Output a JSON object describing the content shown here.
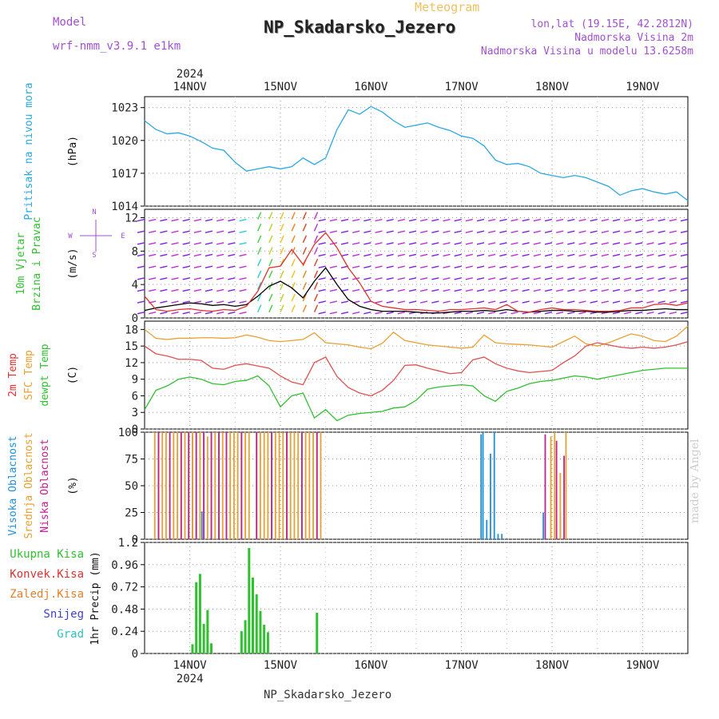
{
  "header": {
    "title": "NP_Skadarsko_Jezero",
    "meteogram": "Meteogram",
    "model_label": "Model",
    "model_name": "wrf-nmm_v3.9.1 e1km",
    "lonlat": "lon,lat (19.15E, 42.2812N)",
    "elevation": "Nadmorska Visina 2m",
    "model_elevation": "Nadmorska Visina u modelu 13.6258m"
  },
  "footer": "NP_Skadarsko_Jezero",
  "watermark": "made by Angel",
  "x_axis": {
    "year": "2024",
    "days": [
      "14NOV",
      "15NOV",
      "16NOV",
      "17NOV",
      "18NOV",
      "19NOV"
    ]
  },
  "chart_data": [
    {
      "type": "line",
      "panel": "pressure",
      "ylabel_lines": [
        "Pritisak na nivou mora"
      ],
      "unit": "(hPa)",
      "ylim": [
        1014,
        1024
      ],
      "yticks": [
        1014,
        1017,
        1020,
        1023
      ],
      "grid": true,
      "color": "#2aa8e0",
      "x_hours": [
        0,
        3,
        6,
        9,
        12,
        15,
        18,
        21,
        24,
        27,
        30,
        33,
        36,
        39,
        42,
        45,
        48,
        51,
        54,
        57,
        60,
        63,
        66,
        69,
        72,
        75,
        78,
        81,
        84,
        87,
        90,
        93,
        96,
        99,
        102,
        105,
        108,
        111,
        114,
        117,
        120,
        123,
        126,
        129,
        132,
        135,
        138,
        141,
        144
      ],
      "values": [
        1021.8,
        1021.0,
        1020.6,
        1020.7,
        1020.4,
        1019.9,
        1019.3,
        1019.1,
        1018.0,
        1017.2,
        1017.4,
        1017.6,
        1017.4,
        1017.6,
        1018.4,
        1017.8,
        1018.4,
        1021.0,
        1022.8,
        1022.4,
        1023.1,
        1022.6,
        1021.8,
        1021.2,
        1021.4,
        1021.6,
        1021.2,
        1020.9,
        1020.4,
        1020.2,
        1019.5,
        1018.2,
        1017.8,
        1017.9,
        1017.6,
        1017.0,
        1016.8,
        1016.6,
        1016.8,
        1016.6,
        1016.2,
        1015.8,
        1015.0,
        1015.4,
        1015.6,
        1015.3,
        1015.1,
        1015.3,
        1014.5
      ]
    },
    {
      "type": "line",
      "panel": "wind",
      "ylabel_lines": [
        "10m Vjetar",
        "Brzina i Pravac"
      ],
      "unit": "(m/s)",
      "legend_compass": [
        "N",
        "W",
        "E",
        "S"
      ],
      "ylim": [
        0,
        13
      ],
      "yticks": [
        0,
        4,
        8,
        12
      ],
      "grid": true,
      "series": [
        {
          "name": "speed",
          "color": "#000000",
          "values": [
            0.9,
            1.2,
            1.4,
            1.6,
            1.8,
            1.7,
            1.5,
            1.6,
            1.4,
            1.6,
            2.6,
            3.8,
            4.4,
            3.6,
            2.4,
            4.4,
            6.0,
            4.0,
            2.2,
            1.4,
            1.0,
            0.8,
            0.8,
            0.8,
            0.7,
            0.6,
            0.6,
            0.7,
            0.8,
            0.8,
            0.9,
            0.8,
            1.0,
            0.8,
            0.7,
            0.8,
            0.9,
            0.9,
            0.8,
            0.8,
            0.7,
            0.7,
            0.8,
            0.9,
            0.9,
            1.0,
            1.1,
            1.0,
            1.0
          ]
        },
        {
          "name": "gust",
          "color": "#e03030",
          "values": [
            2.6,
            1.0,
            0.8,
            1.0,
            1.1,
            0.9,
            0.8,
            1.0,
            0.9,
            1.4,
            3.2,
            6.0,
            6.2,
            8.2,
            6.4,
            8.8,
            10.2,
            8.4,
            6.0,
            4.2,
            2.0,
            1.4,
            1.2,
            1.0,
            1.0,
            0.9,
            0.8,
            1.0,
            1.0,
            1.1,
            1.2,
            1.0,
            1.6,
            0.8,
            0.7,
            1.0,
            1.2,
            1.0,
            1.0,
            0.9,
            0.8,
            0.8,
            0.9,
            1.2,
            1.2,
            1.6,
            1.7,
            1.5,
            1.8
          ]
        }
      ]
    },
    {
      "type": "line",
      "panel": "temperature",
      "ylabel_lines": [
        "2m Temp",
        "SFC Temp",
        "dewpt Temp"
      ],
      "unit": "(C)",
      "ylim": [
        0,
        19.5
      ],
      "yticks": [
        0,
        3,
        6,
        9,
        12,
        15,
        18
      ],
      "grid": true,
      "series": [
        {
          "name": "SFC Temp",
          "color": "#e8a030",
          "values": [
            18.0,
            16.4,
            16.2,
            16.4,
            16.4,
            16.5,
            16.5,
            16.4,
            16.5,
            17.0,
            16.6,
            16.0,
            15.8,
            16.0,
            16.2,
            17.4,
            15.6,
            15.4,
            15.2,
            14.8,
            14.5,
            15.5,
            17.5,
            16.0,
            15.6,
            15.2,
            15.0,
            14.8,
            14.6,
            14.8,
            17.0,
            15.6,
            15.4,
            15.3,
            15.2,
            15.0,
            14.8,
            15.8,
            16.8,
            15.4,
            15.0,
            15.6,
            16.4,
            17.2,
            16.8,
            16.0,
            15.8,
            16.8,
            18.6
          ]
        },
        {
          "name": "2m Temp",
          "color": "#e05050",
          "values": [
            15.0,
            13.6,
            13.2,
            12.6,
            12.6,
            12.4,
            11.0,
            10.8,
            11.5,
            11.8,
            11.4,
            11.0,
            9.6,
            8.5,
            8.0,
            12.0,
            13.0,
            9.5,
            7.5,
            6.5,
            6.0,
            7.0,
            8.8,
            11.5,
            11.6,
            11.0,
            10.5,
            10.0,
            10.2,
            12.5,
            13.0,
            11.8,
            11.0,
            10.5,
            10.2,
            10.4,
            10.6,
            12.0,
            13.2,
            15.0,
            15.6,
            15.2,
            14.8,
            14.6,
            14.8,
            14.6,
            14.8,
            15.2,
            15.8
          ]
        },
        {
          "name": "dewpt Temp",
          "color": "#30c030",
          "values": [
            3.5,
            7.0,
            7.8,
            9.0,
            9.4,
            9.0,
            8.2,
            8.0,
            8.6,
            8.8,
            9.6,
            7.8,
            4.0,
            6.0,
            6.5,
            2.0,
            3.5,
            1.5,
            2.5,
            2.8,
            3.0,
            3.2,
            3.8,
            4.0,
            5.2,
            7.2,
            7.6,
            7.8,
            8.0,
            7.8,
            6.0,
            5.0,
            6.8,
            7.4,
            8.2,
            8.6,
            8.8,
            9.2,
            9.6,
            9.4,
            9.0,
            9.4,
            9.8,
            10.2,
            10.6,
            10.8,
            11.0,
            11.0,
            11.0
          ]
        }
      ]
    },
    {
      "type": "bar",
      "panel": "cloud",
      "ylabel_lines": [
        "Visoka Oblacnost",
        "Srednja Oblacnost",
        "Niska Oblacnost"
      ],
      "unit": "(%)",
      "ylim": [
        0,
        100
      ],
      "yticks": [
        0,
        25,
        50,
        75,
        100
      ],
      "grid": true,
      "series": [
        {
          "name": "Visoka Oblacnost",
          "color": "#1e90d8",
          "x_hours": [
            11,
            12,
            13.5,
            16,
            87.5,
            88,
            89,
            90,
            91,
            92,
            93,
            104,
            108.5
          ],
          "values": [
            97,
            18,
            26,
            28,
            98,
            100,
            18,
            80,
            100,
            5,
            5,
            25,
            25
          ]
        },
        {
          "name": "Srednja Oblacnost",
          "color": "#e8a030",
          "x_hours": [
            1,
            2,
            3,
            4,
            5,
            6,
            7,
            8,
            9,
            10,
            11,
            12,
            13,
            14,
            15,
            16,
            17,
            18,
            19,
            20,
            21,
            22,
            23,
            24,
            25,
            26,
            28,
            29,
            30,
            31,
            32,
            33,
            34,
            35,
            36,
            37,
            38,
            39,
            40,
            41,
            42,
            43,
            44,
            45,
            106,
            107,
            108.5,
            110
          ],
          "values": [
            100,
            100,
            100,
            100,
            100,
            100,
            100,
            100,
            100,
            100,
            100,
            100,
            100,
            100,
            96,
            100,
            100,
            100,
            100,
            100,
            100,
            100,
            100,
            100,
            100,
            100,
            100,
            100,
            100,
            100,
            100,
            100,
            100,
            100,
            100,
            100,
            100,
            100,
            100,
            100,
            100,
            100,
            100,
            100,
            96,
            100,
            62,
            100
          ]
        },
        {
          "name": "Niska Oblacnost",
          "color": "#c02090",
          "x_hours": [
            2,
            5,
            8,
            10,
            12,
            14,
            16,
            18,
            20,
            24,
            28,
            32,
            36,
            40,
            44,
            104.5,
            107.5,
            109.5
          ],
          "values": [
            100,
            100,
            100,
            100,
            100,
            100,
            100,
            100,
            100,
            100,
            100,
            100,
            100,
            100,
            100,
            98,
            92,
            78
          ]
        }
      ]
    },
    {
      "type": "bar",
      "panel": "precip",
      "ylabel_lines": [
        "Ukupna Kisa",
        "Konvek.Kisa",
        "Zaledj.Kisa",
        "Snijeg",
        "Grad"
      ],
      "legend_colors": [
        "#30c030",
        "#e03030",
        "#e08030",
        "#4040d0",
        "#30c0c0"
      ],
      "unit": "1hr Precip (mm)",
      "ylim": [
        0,
        1.2
      ],
      "yticks": [
        0,
        0.24,
        0.48,
        0.72,
        0.96,
        1.2
      ],
      "grid": true,
      "series": [
        {
          "name": "Ukupna Kisa",
          "color": "#30c030",
          "x_hours": [
            11,
            12,
            13,
            14,
            15,
            16,
            17,
            24,
            25,
            26,
            27,
            28,
            29,
            30,
            31,
            32,
            44
          ],
          "values": [
            0.1,
            0.77,
            0.86,
            0.32,
            0.47,
            0.11,
            0.0,
            0.24,
            0.36,
            1.14,
            0.82,
            0.64,
            0.46,
            0.31,
            0.23,
            0.0,
            0.44
          ]
        }
      ]
    }
  ]
}
